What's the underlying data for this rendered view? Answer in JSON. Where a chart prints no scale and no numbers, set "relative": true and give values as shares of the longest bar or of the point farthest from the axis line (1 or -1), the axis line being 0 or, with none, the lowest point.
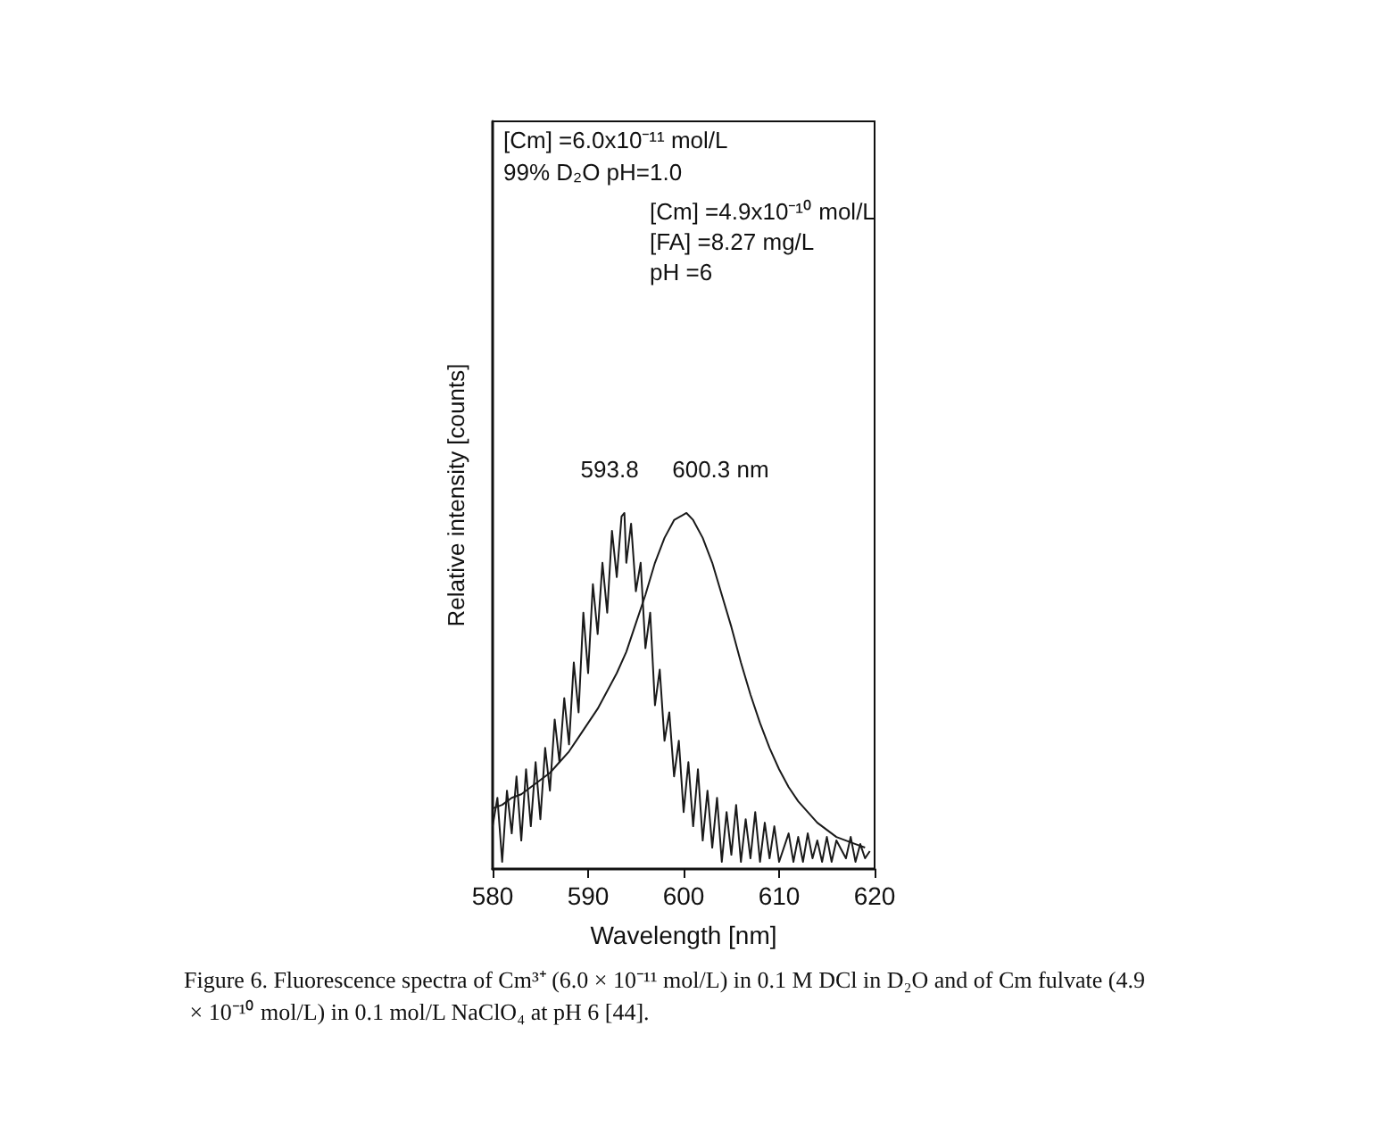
{
  "chart_data": {
    "type": "line",
    "relative": true,
    "xlabel": "Wavelength [nm]",
    "ylabel": "Relative intensity [counts]",
    "xlim": [
      580,
      620
    ],
    "xticks": [
      580,
      590,
      600,
      610,
      620
    ],
    "grid": false,
    "series": [
      {
        "color": "#1a1a1a",
        "x": [
          580,
          580.5,
          581,
          581.5,
          582,
          582.5,
          583,
          583.5,
          584,
          584.5,
          585,
          585.5,
          586,
          586.5,
          587,
          587.5,
          588,
          588.5,
          589,
          589.5,
          590,
          590.5,
          591,
          591.5,
          592,
          592.5,
          593,
          593.5,
          593.8,
          594,
          594.5,
          595,
          595.5,
          596,
          596.5,
          597,
          597.5,
          598,
          598.5,
          599,
          599.5,
          600,
          600.5,
          601,
          601.5,
          602,
          602.5,
          603,
          603.5,
          604,
          604.5,
          605,
          605.5,
          606,
          606.5,
          607,
          607.5,
          608,
          608.5,
          609,
          609.5,
          610,
          611,
          611.5,
          612,
          612.5,
          613,
          613.5,
          614,
          614.5,
          615,
          615.5,
          616,
          617,
          617.5,
          618,
          618.5,
          619,
          619.5
        ],
        "values": [
          0.12,
          0.2,
          0.02,
          0.22,
          0.1,
          0.26,
          0.08,
          0.28,
          0.12,
          0.3,
          0.14,
          0.34,
          0.22,
          0.42,
          0.3,
          0.48,
          0.35,
          0.58,
          0.44,
          0.72,
          0.55,
          0.8,
          0.66,
          0.86,
          0.72,
          0.95,
          0.82,
          0.99,
          1.0,
          0.86,
          0.97,
          0.78,
          0.86,
          0.62,
          0.72,
          0.46,
          0.56,
          0.36,
          0.44,
          0.26,
          0.36,
          0.16,
          0.3,
          0.12,
          0.28,
          0.08,
          0.22,
          0.06,
          0.2,
          0.02,
          0.16,
          0.04,
          0.18,
          0.02,
          0.14,
          0.03,
          0.16,
          0.02,
          0.13,
          0.03,
          0.12,
          0.02,
          0.1,
          0.02,
          0.09,
          0.02,
          0.1,
          0.03,
          0.08,
          0.02,
          0.09,
          0.02,
          0.08,
          0.03,
          0.09,
          0.02,
          0.07,
          0.03,
          0.05
        ]
      },
      {
        "color": "#1a1a1a",
        "x": [
          580,
          581,
          582,
          583,
          584,
          585,
          586,
          587,
          588,
          589,
          590,
          591,
          592,
          593,
          594,
          595,
          596,
          597,
          598,
          599,
          600.3,
          601,
          602,
          603,
          604,
          605,
          606,
          607,
          608,
          609,
          610,
          611,
          612,
          613,
          614,
          615,
          616,
          617,
          618,
          619
        ],
        "values": [
          0.17,
          0.18,
          0.2,
          0.21,
          0.23,
          0.25,
          0.27,
          0.3,
          0.33,
          0.37,
          0.41,
          0.45,
          0.5,
          0.55,
          0.61,
          0.69,
          0.77,
          0.86,
          0.93,
          0.98,
          1.0,
          0.98,
          0.93,
          0.86,
          0.77,
          0.68,
          0.58,
          0.49,
          0.41,
          0.34,
          0.28,
          0.23,
          0.19,
          0.16,
          0.13,
          0.11,
          0.09,
          0.08,
          0.07,
          0.06
        ]
      }
    ],
    "annotations": [
      {
        "text": "593.8",
        "x": 593.8,
        "y": 1.0
      },
      {
        "text": "600.3 nm",
        "x": 600.3,
        "y": 1.0
      },
      "[Cm] =6.0x10⁻¹¹ mol/L",
      "99% D₂O pH=1.0",
      "[Cm] =4.9x10⁻¹⁰ mol/L",
      "[FA] =8.27 mg/L",
      "pH =6",
      "Figure 6. Fluorescence spectra of Cm³⁺ (6.0 × 10⁻¹¹ mol/L) in 0.1 M DCl in D₂O and of Cm fulvate (4.9 × 10⁻¹⁰ mol/L) in 0.1 mol/L NaClO₄ at pH 6 [44]."
    ]
  }
}
